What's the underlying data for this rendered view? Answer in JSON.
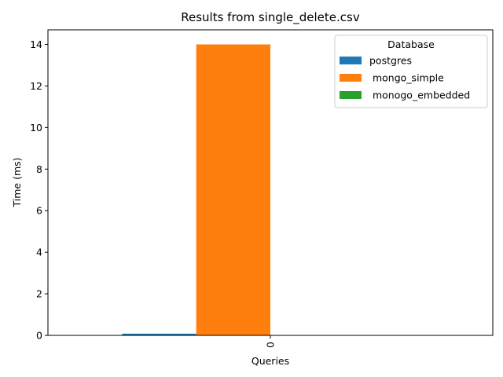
{
  "chart_data": {
    "type": "bar",
    "title": "Results from single_delete.csv",
    "xlabel": "Queries",
    "ylabel": "Time (ms)",
    "categories": [
      "0"
    ],
    "series": [
      {
        "name": "postgres",
        "values": [
          0.08
        ],
        "color": "#1f77b4"
      },
      {
        "name": " mongo_simple",
        "values": [
          14
        ],
        "color": "#ff7f0e"
      },
      {
        "name": " monogo_embedded",
        "values": [
          0
        ],
        "color": "#2ca02c"
      }
    ],
    "ylim": [
      0,
      14.7
    ],
    "yticks": [
      0,
      2,
      4,
      6,
      8,
      10,
      12,
      14
    ],
    "legend": {
      "title": "Database",
      "placement": "top-right"
    },
    "grid": false
  }
}
